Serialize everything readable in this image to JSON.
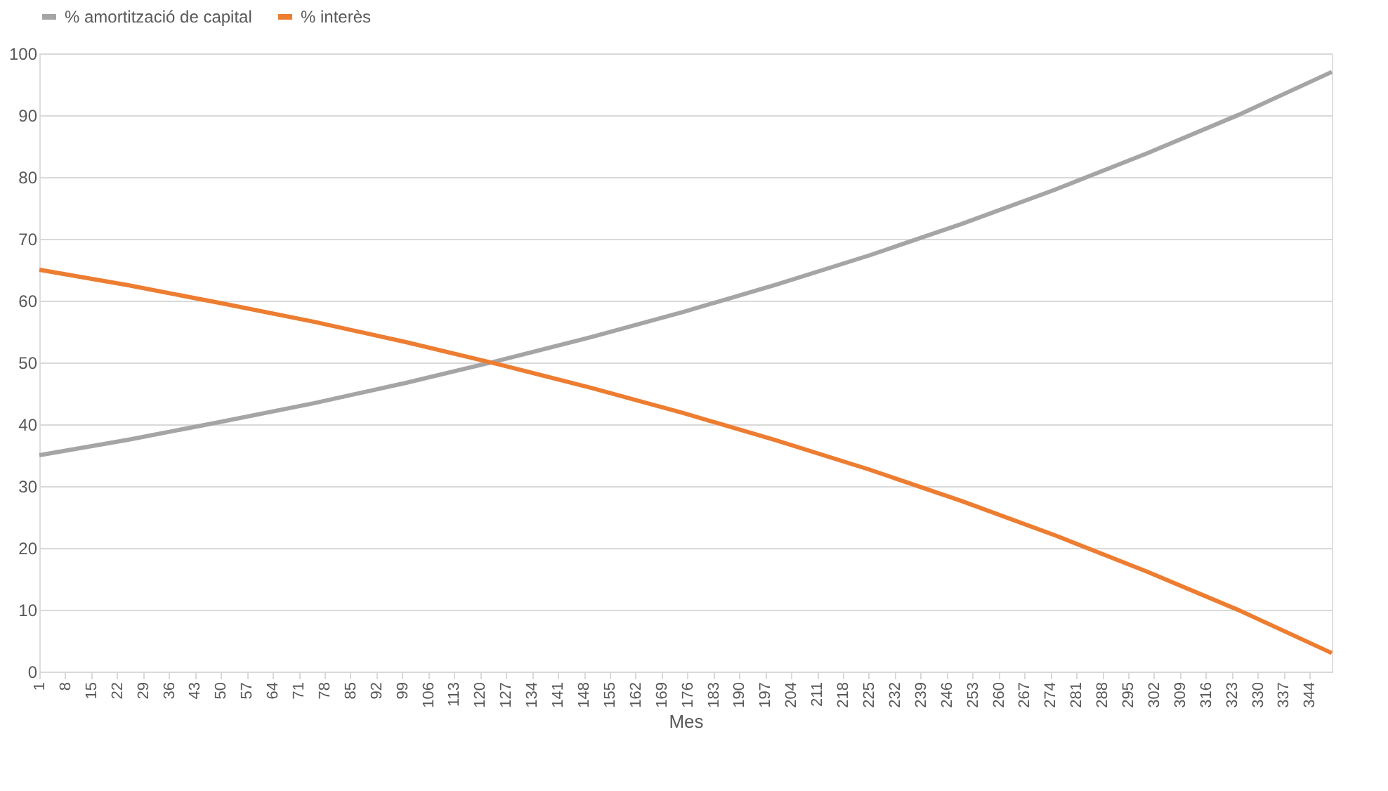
{
  "chart_data": {
    "type": "line",
    "xlabel": "Mes",
    "x": [
      1,
      25,
      50,
      75,
      100,
      125,
      150,
      175,
      200,
      225,
      250,
      275,
      300,
      325,
      350
    ],
    "series": [
      {
        "name": "% amortització de capital",
        "color": "#a5a5a5",
        "values": [
          35.0,
          37.5,
          40.4,
          43.4,
          46.7,
          50.3,
          54.1,
          58.2,
          62.6,
          67.3,
          72.4,
          77.9,
          83.8,
          90.1,
          97.0
        ]
      },
      {
        "name": "% interès",
        "color": "#ed7d31",
        "values": [
          65.0,
          62.5,
          59.6,
          56.6,
          53.3,
          49.7,
          45.9,
          41.8,
          37.4,
          32.7,
          27.6,
          22.1,
          16.2,
          9.9,
          3.0
        ]
      }
    ],
    "xlim": [
      1,
      350
    ],
    "xticks": [
      1,
      8,
      15,
      22,
      29,
      36,
      43,
      50,
      57,
      64,
      71,
      78,
      85,
      92,
      99,
      106,
      113,
      120,
      127,
      134,
      141,
      148,
      155,
      162,
      169,
      176,
      183,
      190,
      197,
      204,
      211,
      218,
      225,
      232,
      239,
      246,
      253,
      260,
      267,
      274,
      281,
      288,
      295,
      302,
      309,
      316,
      323,
      330,
      337,
      344
    ],
    "ylim": [
      0,
      100
    ],
    "yticks": [
      0,
      10,
      20,
      30,
      40,
      50,
      60,
      70,
      80,
      90,
      100
    ],
    "grid": "y",
    "legend": "top",
    "marker": "none",
    "line_style": "solid"
  }
}
